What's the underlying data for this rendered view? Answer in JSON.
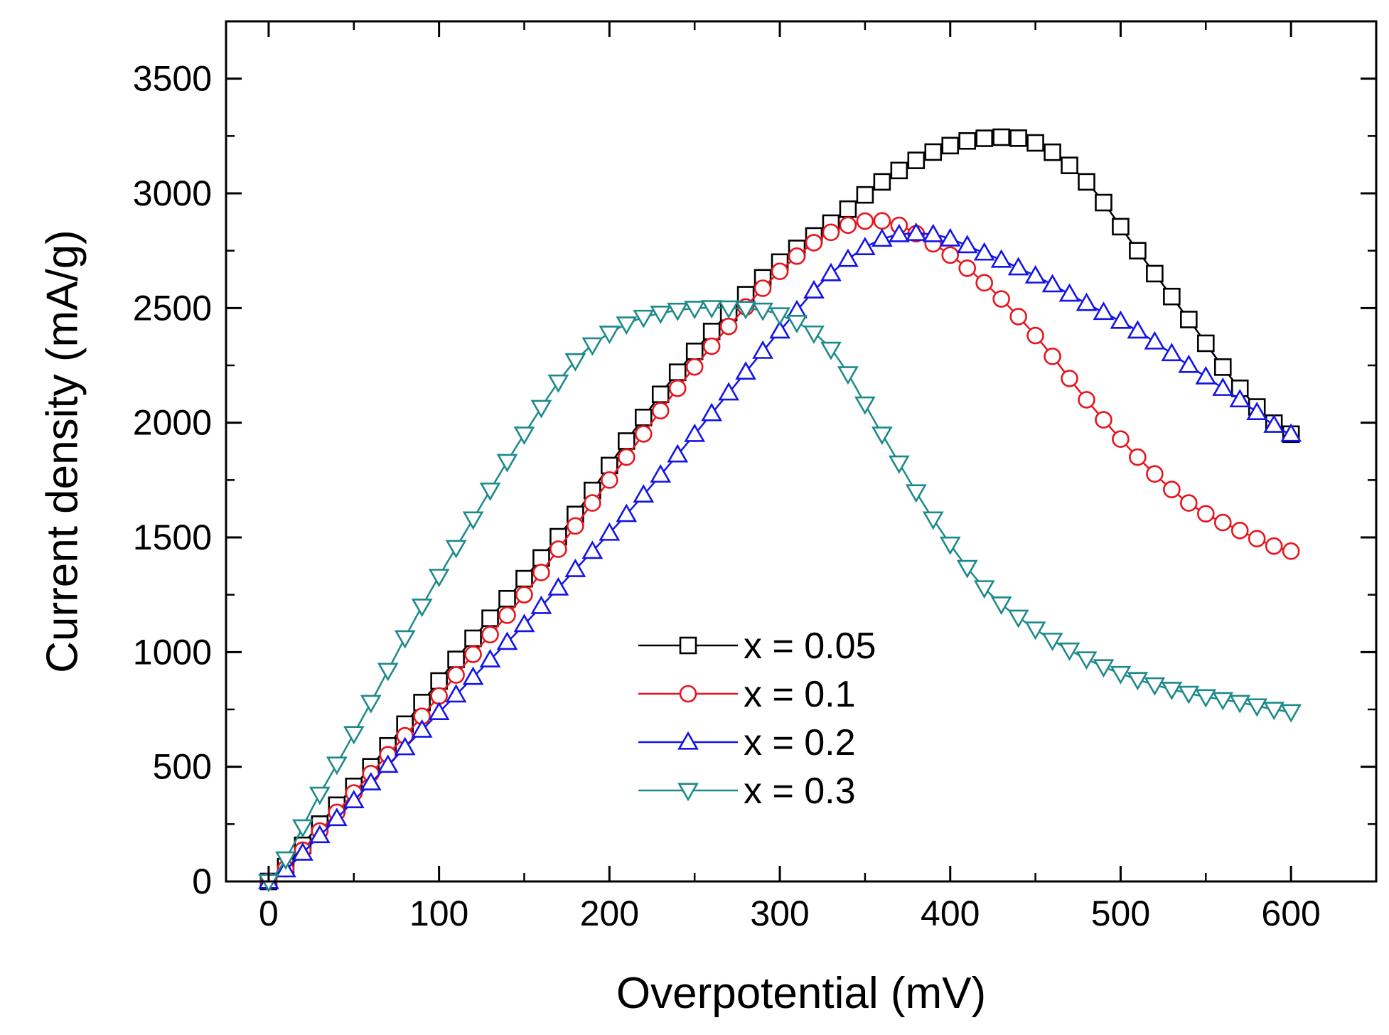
{
  "chart_data": {
    "type": "line",
    "title": "",
    "xlabel": "Overpotential (mV)",
    "ylabel": "Current density (mA/g)",
    "xlim": [
      -25,
      650
    ],
    "ylim": [
      0,
      3750
    ],
    "xticks": [
      0,
      100,
      200,
      300,
      400,
      500,
      600
    ],
    "yticks": [
      0,
      500,
      1000,
      1500,
      2000,
      2500,
      3000,
      3500
    ],
    "xtick_labels": [
      "0",
      "100",
      "200",
      "300",
      "400",
      "500",
      "600"
    ],
    "ytick_labels": [
      "0",
      "500",
      "1000",
      "1500",
      "2000",
      "2500",
      "3000",
      "3500"
    ],
    "grid": false,
    "legend_position": "lower-center",
    "x": [
      0,
      30,
      60,
      90,
      120,
      150,
      180,
      210,
      240,
      270,
      300,
      330,
      360,
      390,
      420,
      450,
      480,
      510,
      540,
      570,
      600
    ],
    "series": [
      {
        "name": "x = 0.05",
        "color": "#000000",
        "marker": "square",
        "values": [
          0,
          250,
          500,
          780,
          1060,
          1320,
          1600,
          1920,
          2220,
          2480,
          2700,
          2870,
          3050,
          3180,
          3240,
          3220,
          3050,
          2750,
          2450,
          2150,
          1950
        ]
      },
      {
        "name": "x = 0.1",
        "color": "#e8141c",
        "marker": "circle",
        "values": [
          0,
          220,
          470,
          720,
          990,
          1250,
          1550,
          1850,
          2150,
          2420,
          2660,
          2830,
          2880,
          2780,
          2610,
          2380,
          2100,
          1850,
          1650,
          1530,
          1440
        ]
      },
      {
        "name": "x = 0.2",
        "color": "#1414e8",
        "marker": "triangle-up",
        "values": [
          0,
          200,
          430,
          660,
          890,
          1120,
          1360,
          1600,
          1860,
          2130,
          2400,
          2650,
          2800,
          2820,
          2740,
          2640,
          2520,
          2400,
          2250,
          2100,
          1950
        ]
      },
      {
        "name": "x = 0.3",
        "color": "#1d8a8a",
        "marker": "triangle-down",
        "values": [
          0,
          380,
          780,
          1200,
          1580,
          1950,
          2270,
          2430,
          2490,
          2500,
          2470,
          2320,
          1950,
          1580,
          1280,
          1100,
          970,
          880,
          820,
          780,
          740
        ]
      }
    ]
  }
}
